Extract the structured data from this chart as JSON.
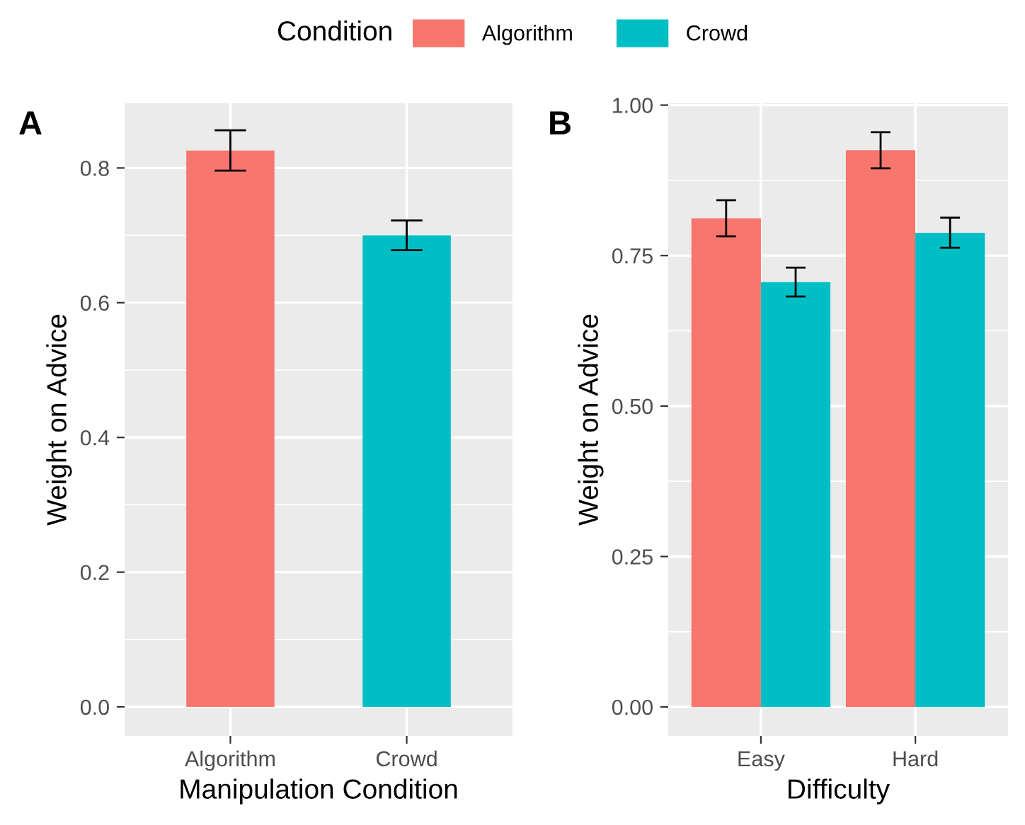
{
  "chart_data": [
    {
      "type": "bar",
      "title": "A",
      "xlabel": "Manipulation Condition",
      "ylabel": "Weight on Advice",
      "categories": [
        "Algorithm",
        "Crowd"
      ],
      "values": [
        0.826,
        0.7
      ],
      "colors": [
        "#f8766d",
        "#00bfc4"
      ],
      "errors": [
        0.03,
        0.022
      ],
      "ylim": [
        -0.043,
        0.896
      ],
      "yticks": [
        {
          "value": 0,
          "label": "0.0"
        },
        0.2,
        0.4,
        0.6,
        0.8
      ],
      "grid": true
    },
    {
      "type": "bar",
      "title": "B",
      "xlabel": "Difficulty",
      "ylabel": "Weight on Advice",
      "categories": [
        "Easy",
        "Hard"
      ],
      "legend_title": "Condition",
      "legend": "top",
      "ylim": [
        -0.048,
        1.003
      ],
      "yticks": [
        {
          "value": 0,
          "label": "0.00"
        },
        0.25,
        {
          "value": 0.5,
          "label": "0.50"
        },
        0.75,
        {
          "value": 1,
          "label": "1.00"
        }
      ],
      "grid": true,
      "series": [
        {
          "name": "Algorithm",
          "color": "#f8766d",
          "values": [
            0.812,
            0.925
          ],
          "errors": [
            0.03,
            0.03
          ]
        },
        {
          "name": "Crowd",
          "color": "#00bfc4",
          "values": [
            0.706,
            0.788
          ],
          "errors": [
            0.024,
            0.025
          ]
        }
      ]
    }
  ]
}
